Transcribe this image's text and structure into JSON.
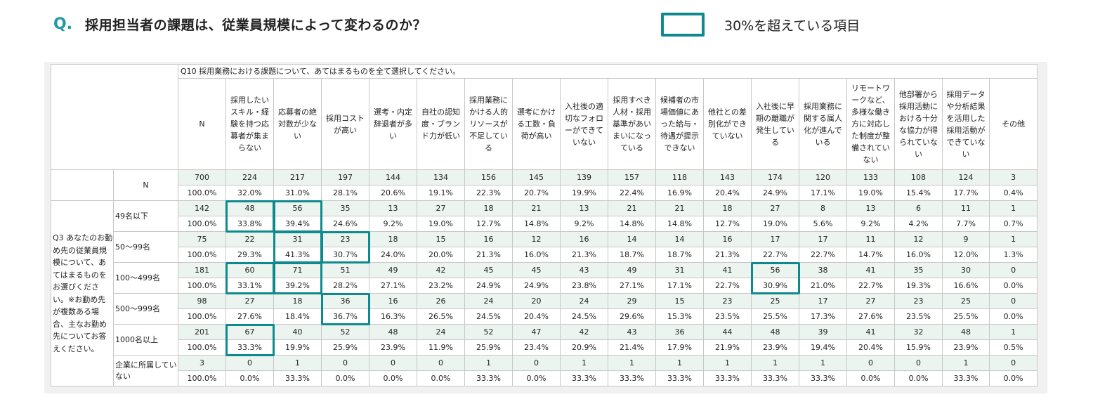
{
  "header": {
    "q_mark": "Q.",
    "title": "採用担当者の課題は、従業員規模によって変わるのか？"
  },
  "legend": {
    "label": "30%を超えている項目",
    "highlight_color": "#0e8a8f"
  },
  "colors": {
    "count_row_bg": "#ecf4ef",
    "accent": "#1f9aa6"
  },
  "table": {
    "question_title": "Q10 採用業務における課題について、あてはまるものを全て選択してください。",
    "row_question": "Q3 あなたのお勤め先の従業員規模について、あてはまるものをお選びください。※お勤め先が複数ある場合、主なお勤め先についてお答えください。",
    "columns": [
      "N",
      "採用したいスキル・経験を持つ応募者が集まらない",
      "応募者の絶対数が少ない",
      "採用コストが高い",
      "選考・内定辞退者が多い",
      "自社の認知度・ブランド力が低い",
      "採用業務にかける人的リソースが不足している",
      "選考にかける工数・負荷が高い",
      "入社後の適切なフォローができていない",
      "採用すべき人材・採用基準があいまいになっている",
      "候補者の市場価値にあった給与・待遇が提示できない",
      "他社との差別化ができていない",
      "入社後に早期の離職が発生している",
      "採用業務に関する属人化が進んでいる",
      "リモートワークなど、多様な働き方に対応した制度が整備されていない",
      "他部署から採用活動における十分な協力が得られていない",
      "採用データや分析結果を活用した採用活動ができていない",
      "その他"
    ],
    "groups": [
      {
        "label": "N",
        "counts": [
          "700",
          "224",
          "217",
          "197",
          "144",
          "134",
          "156",
          "145",
          "139",
          "157",
          "118",
          "143",
          "174",
          "120",
          "133",
          "108",
          "124",
          "3"
        ],
        "percents": [
          "100.0%",
          "32.0%",
          "31.0%",
          "28.1%",
          "20.6%",
          "19.1%",
          "22.3%",
          "20.7%",
          "19.9%",
          "22.4%",
          "16.9%",
          "20.4%",
          "24.9%",
          "17.1%",
          "19.0%",
          "15.4%",
          "17.7%",
          "0.4%"
        ]
      },
      {
        "label": "49名以下",
        "counts": [
          "142",
          "48",
          "56",
          "35",
          "13",
          "27",
          "18",
          "21",
          "13",
          "21",
          "21",
          "18",
          "27",
          "8",
          "13",
          "6",
          "11",
          "1"
        ],
        "percents": [
          "100.0%",
          "33.8%",
          "39.4%",
          "24.6%",
          "9.2%",
          "19.0%",
          "12.7%",
          "14.8%",
          "9.2%",
          "14.8%",
          "14.8%",
          "12.7%",
          "19.0%",
          "5.6%",
          "9.2%",
          "4.2%",
          "7.7%",
          "0.7%"
        ]
      },
      {
        "label": "50〜99名",
        "counts": [
          "75",
          "22",
          "31",
          "23",
          "18",
          "15",
          "16",
          "12",
          "16",
          "14",
          "14",
          "16",
          "17",
          "17",
          "11",
          "12",
          "9",
          "1"
        ],
        "percents": [
          "100.0%",
          "29.3%",
          "41.3%",
          "30.7%",
          "24.0%",
          "20.0%",
          "21.3%",
          "16.0%",
          "21.3%",
          "18.7%",
          "18.7%",
          "21.3%",
          "22.7%",
          "22.7%",
          "14.7%",
          "16.0%",
          "12.0%",
          "1.3%"
        ]
      },
      {
        "label": "100〜499名",
        "counts": [
          "181",
          "60",
          "71",
          "51",
          "49",
          "42",
          "45",
          "45",
          "43",
          "49",
          "31",
          "41",
          "56",
          "38",
          "41",
          "35",
          "30",
          "0"
        ],
        "percents": [
          "100.0%",
          "33.1%",
          "39.2%",
          "28.2%",
          "27.1%",
          "23.2%",
          "24.9%",
          "24.9%",
          "23.8%",
          "27.1%",
          "17.1%",
          "22.7%",
          "30.9%",
          "21.0%",
          "22.7%",
          "19.3%",
          "16.6%",
          "0.0%"
        ]
      },
      {
        "label": "500〜999名",
        "counts": [
          "98",
          "27",
          "18",
          "36",
          "16",
          "26",
          "24",
          "20",
          "24",
          "29",
          "15",
          "23",
          "25",
          "17",
          "27",
          "23",
          "25",
          "0"
        ],
        "percents": [
          "100.0%",
          "27.6%",
          "18.4%",
          "36.7%",
          "16.3%",
          "26.5%",
          "24.5%",
          "20.4%",
          "24.5%",
          "29.6%",
          "15.3%",
          "23.5%",
          "25.5%",
          "17.3%",
          "27.6%",
          "23.5%",
          "25.5%",
          "0.0%"
        ]
      },
      {
        "label": "1000名以上",
        "counts": [
          "201",
          "67",
          "40",
          "52",
          "48",
          "24",
          "52",
          "47",
          "42",
          "43",
          "36",
          "44",
          "48",
          "39",
          "41",
          "32",
          "48",
          "1"
        ],
        "percents": [
          "100.0%",
          "33.3%",
          "19.9%",
          "25.9%",
          "23.9%",
          "11.9%",
          "25.9%",
          "23.4%",
          "20.9%",
          "21.4%",
          "17.9%",
          "21.9%",
          "23.9%",
          "19.4%",
          "20.4%",
          "15.9%",
          "23.9%",
          "0.5%"
        ]
      },
      {
        "label": "企業に所属していない",
        "counts": [
          "3",
          "0",
          "1",
          "0",
          "0",
          "0",
          "1",
          "0",
          "1",
          "1",
          "1",
          "1",
          "1",
          "1",
          "0",
          "0",
          "1",
          "0"
        ],
        "percents": [
          "100.0%",
          "0.0%",
          "33.3%",
          "0.0%",
          "0.0%",
          "0.0%",
          "33.3%",
          "0.0%",
          "33.3%",
          "33.3%",
          "33.3%",
          "33.3%",
          "33.3%",
          "33.3%",
          "0.0%",
          "0.0%",
          "33.3%",
          "0.0%"
        ]
      }
    ],
    "highlighted_cells": [
      {
        "group": 1,
        "col": 1
      },
      {
        "group": 1,
        "col": 2
      },
      {
        "group": 2,
        "col": 2
      },
      {
        "group": 2,
        "col": 3
      },
      {
        "group": 3,
        "col": 1
      },
      {
        "group": 3,
        "col": 2
      },
      {
        "group": 3,
        "col": 12
      },
      {
        "group": 4,
        "col": 3
      },
      {
        "group": 5,
        "col": 1
      }
    ]
  }
}
